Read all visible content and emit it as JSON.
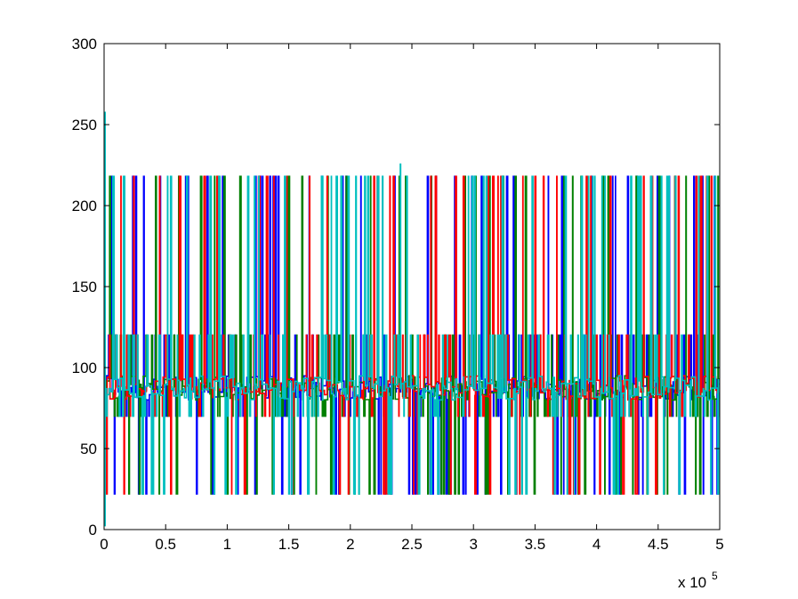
{
  "chart_data": {
    "type": "line",
    "title": "",
    "xlabel": "",
    "ylabel": "",
    "xlim": [
      0,
      500000
    ],
    "ylim": [
      0,
      300
    ],
    "x_multiplier_label": "x 10",
    "x_multiplier_exponent": "5",
    "x_ticks": [
      {
        "value": 0,
        "label": "0"
      },
      {
        "value": 50000,
        "label": "0.5"
      },
      {
        "value": 100000,
        "label": "1"
      },
      {
        "value": 150000,
        "label": "1.5"
      },
      {
        "value": 200000,
        "label": "2"
      },
      {
        "value": 250000,
        "label": "2.5"
      },
      {
        "value": 300000,
        "label": "3"
      },
      {
        "value": 350000,
        "label": "3.5"
      },
      {
        "value": 400000,
        "label": "4"
      },
      {
        "value": 450000,
        "label": "4.5"
      },
      {
        "value": 500000,
        "label": "5"
      }
    ],
    "y_ticks": [
      {
        "value": 0,
        "label": "0"
      },
      {
        "value": 50,
        "label": "50"
      },
      {
        "value": 100,
        "label": "100"
      },
      {
        "value": 150,
        "label": "150"
      },
      {
        "value": 200,
        "label": "200"
      },
      {
        "value": 250,
        "label": "250"
      },
      {
        "value": 300,
        "label": "300"
      }
    ],
    "grid": false,
    "legend": "none",
    "series": [
      {
        "color": "#0000ff",
        "levels": [
          22,
          70,
          85,
          120,
          218
        ],
        "switches_per_unit": 1.4
      },
      {
        "color": "#008000",
        "levels": [
          22,
          70,
          88,
          120,
          218
        ],
        "switches_per_unit": 1.3
      },
      {
        "color": "#ff0000",
        "levels": [
          22,
          70,
          86,
          120,
          218
        ],
        "switches_per_unit": 1.1
      },
      {
        "color": "#00bfbf",
        "levels": [
          22,
          70,
          87,
          120,
          218
        ],
        "switches_per_unit": 1.2
      }
    ],
    "steady_levels": [
      22,
      70,
      87,
      120,
      218
    ],
    "spikes": [
      {
        "x": 0,
        "y": 258,
        "color": "#00bfbf"
      },
      {
        "x": 240000,
        "y": 226,
        "color": "#00bfbf"
      }
    ],
    "baseline_band": {
      "y_min": 80,
      "y_max": 95
    }
  }
}
